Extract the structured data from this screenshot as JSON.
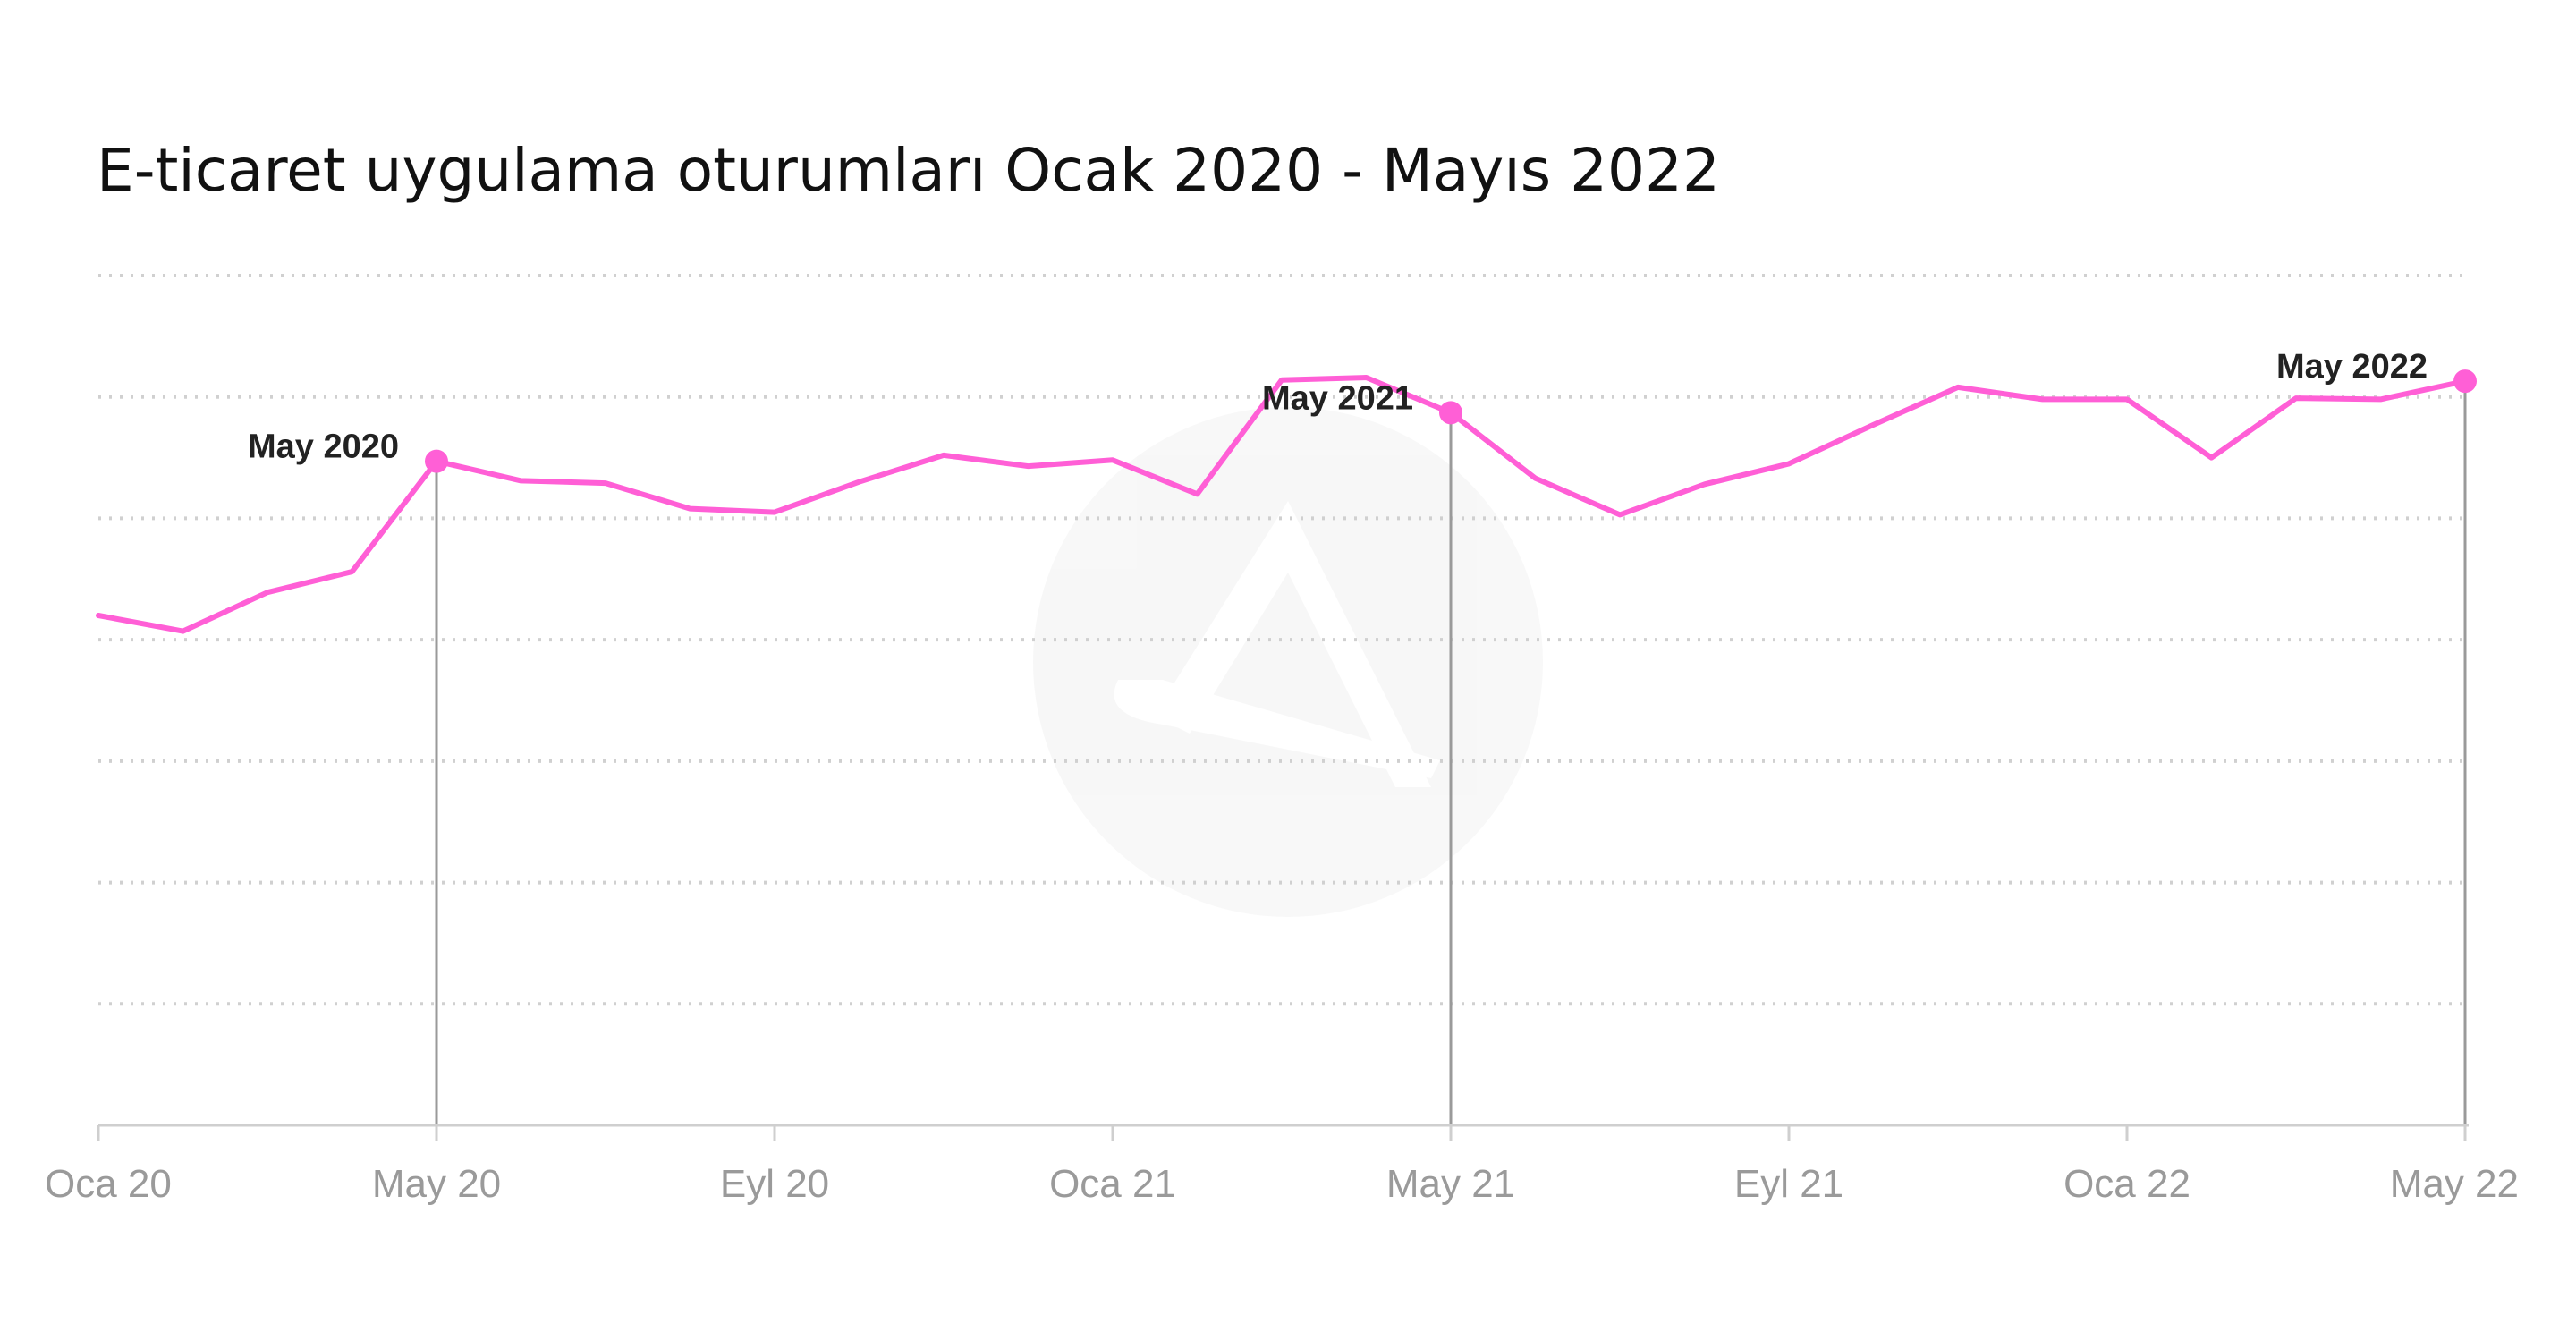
{
  "chart_data": {
    "type": "line",
    "title": "E-ticaret uygulama oturumları Ocak 2020 - Mayıs 2022",
    "xlabel": "",
    "ylabel": "",
    "x": [
      "2020-01",
      "2020-02",
      "2020-03",
      "2020-04",
      "2020-05",
      "2020-06",
      "2020-07",
      "2020-08",
      "2020-09",
      "2020-10",
      "2020-11",
      "2020-12",
      "2021-01",
      "2021-02",
      "2021-03",
      "2021-04",
      "2021-05",
      "2021-06",
      "2021-07",
      "2021-08",
      "2021-09",
      "2021-10",
      "2021-11",
      "2021-12",
      "2022-01",
      "2022-02",
      "2022-03",
      "2022-04",
      "2022-05"
    ],
    "tick_labels": [
      "Oca 20",
      "May 20",
      "Eyl 20",
      "Oca 21",
      "May 21",
      "Eyl 21",
      "Oca 22",
      "May 22"
    ],
    "tick_positions": [
      "2020-01",
      "2020-05",
      "2020-09",
      "2021-01",
      "2021-05",
      "2021-09",
      "2022-01",
      "2022-05"
    ],
    "ylim": [
      0,
      7
    ],
    "y_gridlines": 7,
    "y_tick_labels_shown": false,
    "grid": true,
    "series": [
      {
        "color": "#ff5fd6",
        "values": [
          4.2,
          4.07,
          4.39,
          4.56,
          5.47,
          5.31,
          5.29,
          5.08,
          5.05,
          5.3,
          5.52,
          5.43,
          5.48,
          5.2,
          6.14,
          6.16,
          5.87,
          5.33,
          5.03,
          5.28,
          5.45,
          5.77,
          6.08,
          5.98,
          5.98,
          5.5,
          5.99,
          5.98,
          6.13
        ]
      }
    ],
    "annotations": [
      {
        "x": "2020-05",
        "label": "May 2020"
      },
      {
        "x": "2021-05",
        "label": "May 2021"
      },
      {
        "x": "2022-05",
        "label": "May 2022"
      }
    ]
  }
}
